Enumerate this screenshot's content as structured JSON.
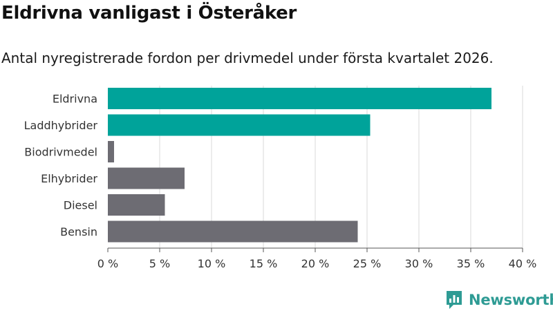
{
  "header": {
    "title": "Eldrivna vanligast i Österåker",
    "subtitle": "Antal nyregistrerade fordon per drivmedel under första kvartalet 2026."
  },
  "brand": {
    "name": "Newsworthy",
    "icon": "newsworthy-logo-icon"
  },
  "colors": {
    "highlight": "#00a39a",
    "muted": "#6d6c73",
    "grid": "#d9d9d9",
    "brand": "#2e9b94"
  },
  "chart_data": {
    "type": "bar",
    "orientation": "horizontal",
    "categories": [
      "Eldrivna",
      "Laddhybrider",
      "Biodrivmedel",
      "Elhybrider",
      "Diesel",
      "Bensin"
    ],
    "values": [
      37.0,
      25.3,
      0.6,
      7.4,
      5.5,
      24.1
    ],
    "highlighted": [
      true,
      true,
      false,
      false,
      false,
      false
    ],
    "xlim": [
      0,
      40
    ],
    "xticks": [
      0,
      5,
      10,
      15,
      20,
      25,
      30,
      35,
      40
    ],
    "xtick_labels": [
      "0 %",
      "5 %",
      "10 %",
      "15 %",
      "20 %",
      "25 %",
      "30 %",
      "35 %",
      "40 %"
    ],
    "xlabel": "",
    "ylabel": "",
    "grid": true,
    "legend": "none"
  }
}
